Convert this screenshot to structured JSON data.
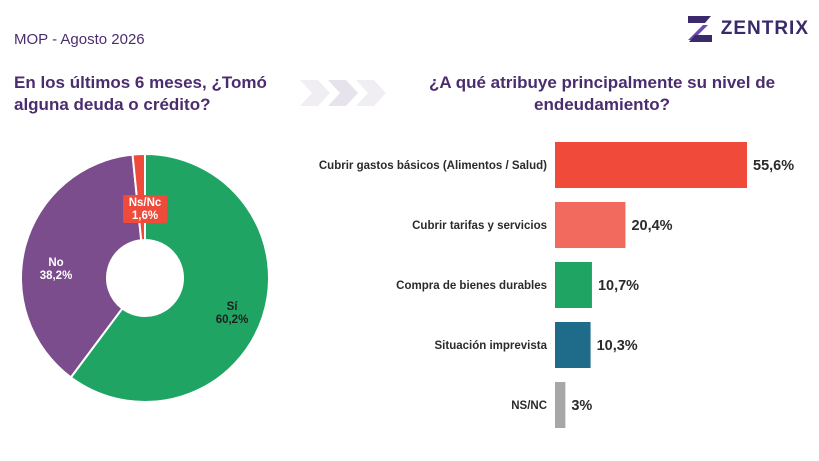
{
  "header": {
    "survey": "MOP - Agosto 2026"
  },
  "logo": {
    "text": "ZENTRIX"
  },
  "left_question": "En los últimos 6 meses, ¿Tomó alguna deuda o crédito?",
  "right_question": "¿A qué atribuye principalmente su nivel de endeudamiento?",
  "chart_data": [
    {
      "type": "pie",
      "title": "En los últimos 6 meses, ¿Tomó alguna deuda o crédito?",
      "slices": [
        {
          "label": "Sí",
          "value": 60.2,
          "display": "60,2%",
          "color": "#1fa463"
        },
        {
          "label": "No",
          "value": 38.2,
          "display": "38,2%",
          "color": "#7b4d8c"
        },
        {
          "label": "Ns/Nc",
          "value": 1.6,
          "display": "1,6%",
          "color": "#ef4a3a"
        }
      ]
    },
    {
      "type": "bar",
      "orientation": "horizontal",
      "title": "¿A qué atribuye principalmente su nivel de endeudamiento?",
      "categories": [
        "Cubrir gastos básicos (Alimentos / Salud)",
        "Cubrir tarifas y servicios",
        "Compra de bienes durables",
        "Situación imprevista",
        "NS/NC"
      ],
      "values": [
        55.6,
        20.4,
        10.7,
        10.3,
        3
      ],
      "value_labels": [
        "55,6%",
        "20,4%",
        "10,7%",
        "10,3%",
        "3%"
      ],
      "colors": [
        "#ef4a3a",
        "#f26a5e",
        "#1fa463",
        "#1e6b8a",
        "#a7a7a7"
      ]
    }
  ]
}
